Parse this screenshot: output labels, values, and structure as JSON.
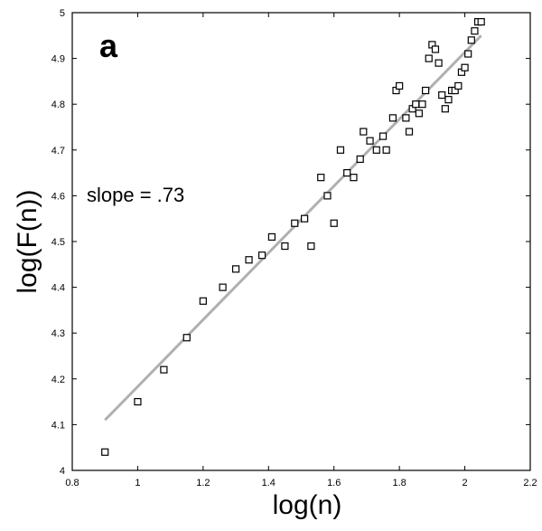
{
  "chart_data": {
    "type": "scatter",
    "panel_label": "a",
    "annotation": "slope = .73",
    "xlabel": "log(n)",
    "ylabel": "log(F(n))",
    "xlim": [
      0.8,
      2.2
    ],
    "ylim": [
      4.0,
      5.0
    ],
    "xticks": [
      "0.8",
      "1",
      "1.2",
      "1.4",
      "1.6",
      "1.8",
      "2",
      "2.2"
    ],
    "yticks": [
      "4",
      "4.1",
      "4.2",
      "4.3",
      "4.4",
      "4.5",
      "4.6",
      "4.7",
      "4.8",
      "4.9",
      "5"
    ],
    "grid": false,
    "marker_color": "#000000",
    "fit_color": "#b0b0b0",
    "series": [
      {
        "points": [
          [
            0.9,
            4.04
          ],
          [
            1.0,
            4.15
          ],
          [
            1.08,
            4.22
          ],
          [
            1.15,
            4.29
          ],
          [
            1.2,
            4.37
          ],
          [
            1.26,
            4.4
          ],
          [
            1.3,
            4.44
          ],
          [
            1.34,
            4.46
          ],
          [
            1.38,
            4.47
          ],
          [
            1.41,
            4.51
          ],
          [
            1.45,
            4.49
          ],
          [
            1.48,
            4.54
          ],
          [
            1.51,
            4.55
          ],
          [
            1.53,
            4.49
          ],
          [
            1.56,
            4.64
          ],
          [
            1.58,
            4.6
          ],
          [
            1.6,
            4.54
          ],
          [
            1.62,
            4.7
          ],
          [
            1.64,
            4.65
          ],
          [
            1.66,
            4.64
          ],
          [
            1.68,
            4.68
          ],
          [
            1.69,
            4.74
          ],
          [
            1.71,
            4.72
          ],
          [
            1.73,
            4.7
          ],
          [
            1.75,
            4.73
          ],
          [
            1.76,
            4.7
          ],
          [
            1.78,
            4.77
          ],
          [
            1.79,
            4.83
          ],
          [
            1.8,
            4.84
          ],
          [
            1.82,
            4.77
          ],
          [
            1.83,
            4.74
          ],
          [
            1.84,
            4.79
          ],
          [
            1.85,
            4.8
          ],
          [
            1.86,
            4.78
          ],
          [
            1.87,
            4.8
          ],
          [
            1.88,
            4.83
          ],
          [
            1.89,
            4.9
          ],
          [
            1.9,
            4.93
          ],
          [
            1.91,
            4.92
          ],
          [
            1.92,
            4.89
          ],
          [
            1.93,
            4.82
          ],
          [
            1.94,
            4.79
          ],
          [
            1.95,
            4.81
          ],
          [
            1.96,
            4.83
          ],
          [
            1.97,
            4.83
          ],
          [
            1.98,
            4.84
          ],
          [
            1.99,
            4.87
          ],
          [
            2.0,
            4.88
          ],
          [
            2.01,
            4.91
          ],
          [
            2.02,
            4.94
          ],
          [
            2.03,
            4.96
          ],
          [
            2.04,
            4.98
          ],
          [
            2.05,
            4.98
          ]
        ]
      }
    ],
    "fit_line": {
      "x": [
        0.9,
        2.05
      ],
      "y": [
        4.11,
        4.95
      ]
    }
  }
}
